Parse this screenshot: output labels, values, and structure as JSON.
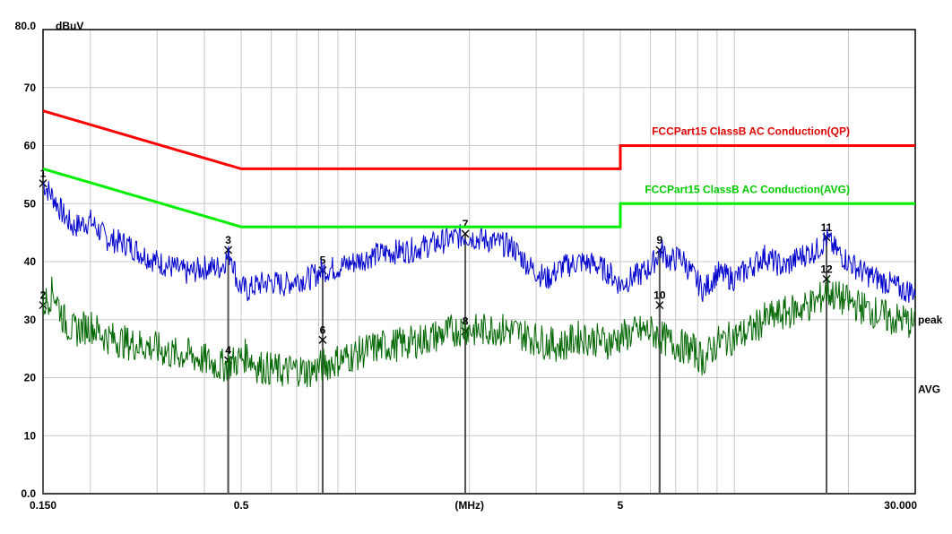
{
  "chart_data": {
    "type": "line",
    "x_scale": "log",
    "xlim": [
      0.15,
      30.0
    ],
    "ylim": [
      0,
      80
    ],
    "grid": true,
    "y_unit": "dBuV",
    "x_unit": "(MHz)",
    "x_tick_labels": [
      {
        "value": 0.15,
        "label": "0.150"
      },
      {
        "value": 0.5,
        "label": "0.5"
      },
      {
        "value": 2.0,
        "label": "(MHz)"
      },
      {
        "value": 5.0,
        "label": "5"
      },
      {
        "value": 30.0,
        "label": "30.000"
      }
    ],
    "y_tick_labels": [
      {
        "value": 80,
        "label": "80.0"
      },
      {
        "value": 70,
        "label": "70"
      },
      {
        "value": 60,
        "label": "60"
      },
      {
        "value": 50,
        "label": "50"
      },
      {
        "value": 40,
        "label": "40"
      },
      {
        "value": 30,
        "label": "30"
      },
      {
        "value": 20,
        "label": "20"
      },
      {
        "value": 10,
        "label": "10"
      },
      {
        "value": 0,
        "label": "0.0"
      }
    ],
    "limit_lines": [
      {
        "name": "FCCPart15 ClassB AC Conduction(QP)",
        "color": "#ff0000",
        "x": [
          0.15,
          0.5,
          5.0,
          5.0,
          30.0
        ],
        "y": [
          66,
          56,
          56,
          60,
          60
        ]
      },
      {
        "name": "FCCPart15 ClassB AC Conduction(AVG)",
        "color": "#00ee00",
        "x": [
          0.15,
          0.5,
          5.0,
          5.0,
          30.0
        ],
        "y": [
          56,
          46,
          46,
          50,
          50
        ]
      }
    ],
    "series": [
      {
        "name": "peak",
        "color": "#0000cc",
        "x": [
          0.15,
          0.16,
          0.17,
          0.18,
          0.2,
          0.22,
          0.25,
          0.28,
          0.3,
          0.33,
          0.36,
          0.4,
          0.44,
          0.47,
          0.49,
          0.52,
          0.55,
          0.6,
          0.65,
          0.7,
          0.75,
          0.82,
          0.9,
          1.0,
          1.1,
          1.2,
          1.4,
          1.6,
          1.8,
          1.95,
          2.1,
          2.3,
          2.6,
          2.9,
          3.2,
          3.5,
          3.9,
          4.3,
          4.7,
          5.0,
          5.3,
          5.7,
          6.0,
          6.4,
          6.8,
          7.2,
          7.7,
          8.3,
          9.0,
          10.0,
          11.0,
          12.0,
          13.5,
          15.0,
          16.5,
          17.5,
          18.5,
          20.0,
          22.0,
          24.0,
          26.0,
          28.0,
          30.0
        ],
        "y": [
          53.5,
          51,
          48,
          46,
          47,
          44,
          43,
          41,
          40,
          39,
          38,
          39,
          39,
          41.5,
          36,
          35,
          36,
          36.5,
          36,
          37,
          37,
          38.5,
          39,
          40,
          41,
          41.5,
          42,
          43,
          44,
          44.5,
          44,
          43.5,
          42.5,
          39,
          37,
          39,
          40,
          39.5,
          38,
          36,
          37,
          38,
          39,
          42,
          40,
          41,
          38,
          35,
          38,
          37,
          39,
          41,
          39,
          41,
          42,
          44,
          42,
          40,
          38,
          37,
          36,
          35,
          35
        ]
      },
      {
        "name": "AVG",
        "color": "#006600",
        "x": [
          0.15,
          0.16,
          0.17,
          0.18,
          0.2,
          0.22,
          0.25,
          0.28,
          0.3,
          0.33,
          0.36,
          0.4,
          0.44,
          0.47,
          0.49,
          0.52,
          0.55,
          0.6,
          0.65,
          0.7,
          0.75,
          0.82,
          0.9,
          1.0,
          1.1,
          1.2,
          1.4,
          1.6,
          1.8,
          1.95,
          2.1,
          2.3,
          2.6,
          2.9,
          3.2,
          3.5,
          3.9,
          4.3,
          4.7,
          5.0,
          5.3,
          5.7,
          6.0,
          6.4,
          6.8,
          7.2,
          7.7,
          8.3,
          9.0,
          10.0,
          11.0,
          12.0,
          13.5,
          15.0,
          16.5,
          17.5,
          18.5,
          20.0,
          22.0,
          24.0,
          26.0,
          28.0,
          30.0
        ],
        "y": [
          32.5,
          35,
          30,
          28,
          29,
          27,
          26,
          25.5,
          25,
          24,
          24,
          23,
          22,
          22.5,
          23,
          24,
          22,
          21.5,
          21,
          21.5,
          21,
          22,
          23,
          24,
          25,
          25.5,
          26,
          27,
          28,
          28.5,
          28,
          28.5,
          28,
          27,
          26,
          25.5,
          27,
          26.5,
          26,
          27,
          27.5,
          28,
          28,
          27,
          26,
          25.5,
          25,
          23,
          26,
          27,
          28,
          30,
          31,
          32,
          33,
          35,
          34,
          33,
          32,
          31,
          30,
          30,
          29
        ]
      }
    ],
    "markers": [
      {
        "label": "1",
        "x": 0.15,
        "y": 53.5
      },
      {
        "label": "2",
        "x": 0.15,
        "y": 32.5
      },
      {
        "label": "3",
        "x": 0.462,
        "y": 42.0
      },
      {
        "label": "4",
        "x": 0.462,
        "y": 23.0
      },
      {
        "label": "5",
        "x": 0.82,
        "y": 38.5
      },
      {
        "label": "6",
        "x": 0.82,
        "y": 26.5
      },
      {
        "label": "7",
        "x": 1.95,
        "y": 44.8
      },
      {
        "label": "8",
        "x": 1.95,
        "y": 28.0
      },
      {
        "label": "9",
        "x": 6.35,
        "y": 42.0
      },
      {
        "label": "10",
        "x": 6.35,
        "y": 32.5
      },
      {
        "label": "11",
        "x": 17.5,
        "y": 44.2
      },
      {
        "label": "12",
        "x": 17.5,
        "y": 37.0
      }
    ]
  }
}
